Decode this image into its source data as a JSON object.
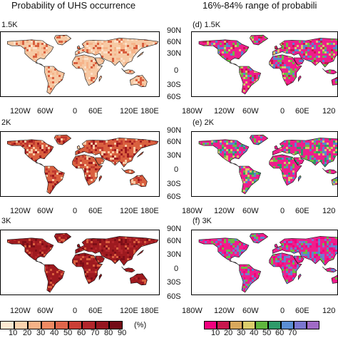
{
  "titles": {
    "left": "Probability of UHS occurrence",
    "right": "16%-84% range of probabili"
  },
  "panels": {
    "a": "1.5K",
    "b": "2K",
    "c": "3K",
    "d": "(d) 1.5K",
    "e": "(e) 2K",
    "f": "(f) 3K"
  },
  "axes": {
    "lon_left": [
      "120W",
      "60W",
      "0",
      "60E",
      "120E",
      "180E"
    ],
    "lon_right": [
      "180W",
      "120W",
      "60W",
      "0",
      "60E",
      "120"
    ],
    "lat": [
      "90N",
      "60N",
      "30N",
      "0",
      "30S",
      "60S"
    ]
  },
  "colorbar_left": {
    "labels": [
      "10",
      "20",
      "30",
      "40",
      "50",
      "60",
      "70",
      "80",
      "90"
    ],
    "unit": "(%)",
    "colors": [
      "#fde9d2",
      "#fbd3ae",
      "#f7b287",
      "#ef8a62",
      "#e0664b",
      "#cb3f36",
      "#b2262b",
      "#951620",
      "#740b16"
    ]
  },
  "colorbar_right": {
    "labels": [
      "10",
      "20",
      "30",
      "40",
      "50",
      "60",
      "70"
    ],
    "colors": [
      "#f2007e",
      "#c8184e",
      "#d9a85c",
      "#dccd6b",
      "#5fb63e",
      "#2e9b6a",
      "#5a8ed3",
      "#7b77d0",
      "#a06bc6"
    ]
  },
  "map_colors": {
    "ocean": "#ffffff",
    "coast": "#111111",
    "prob_low": "#f6c9a4",
    "prob_mid": "#d9603f",
    "prob_high": "#9e1a1f",
    "range_pink": "#ef1e8c",
    "range_green": "#6dbb45",
    "range_yellow": "#d8c468",
    "range_blue": "#5b84cf"
  }
}
